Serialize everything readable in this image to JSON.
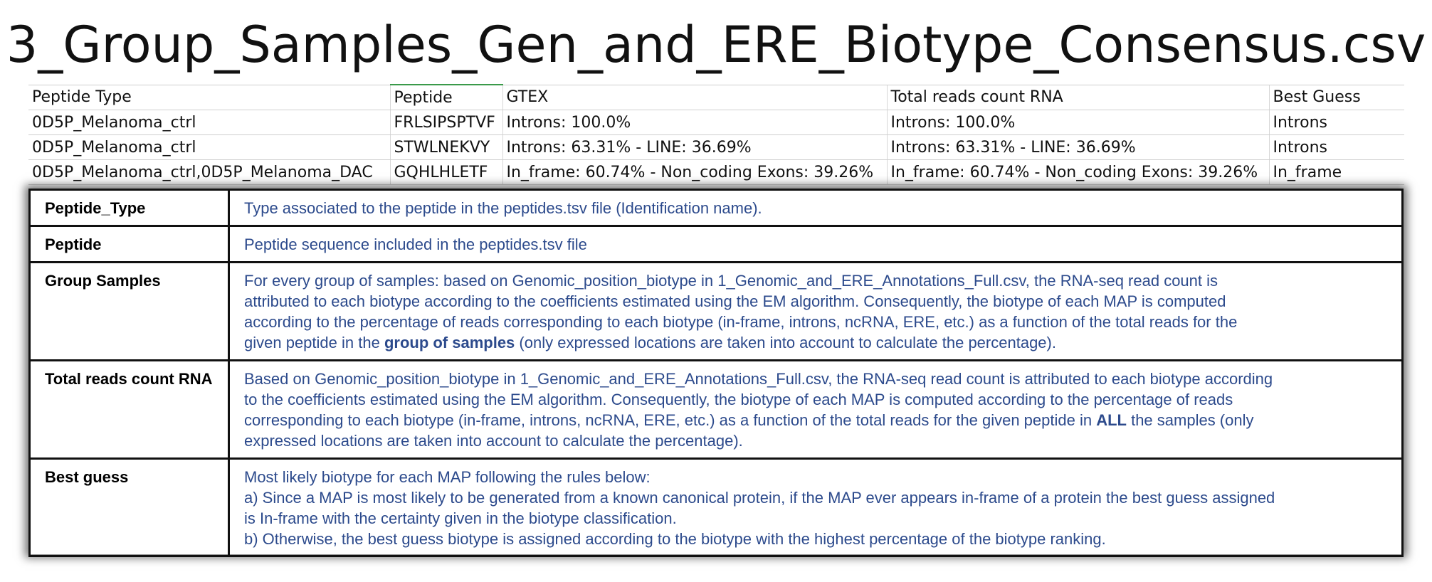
{
  "title": "3_Group_Samples_Gen_and_ERE_Biotype_Consensus.csv",
  "csv": {
    "headers": [
      "Peptide Type",
      "Peptide",
      "GTEX",
      "Total reads count RNA",
      "Best Guess"
    ],
    "rows": [
      [
        "0D5P_Melanoma_ctrl",
        "FRLSIPSPTVF",
        "Introns: 100.0%",
        "Introns: 100.0%",
        "Introns"
      ],
      [
        "0D5P_Melanoma_ctrl",
        "STWLNEKVY",
        "Introns: 63.31% - LINE: 36.69%",
        "Introns: 63.31% - LINE: 36.69%",
        "Introns"
      ],
      [
        "0D5P_Melanoma_ctrl,0D5P_Melanoma_DAC",
        "GQHLHLETF",
        "In_frame: 60.74% - Non_coding Exons: 39.26%",
        "In_frame: 60.74% - Non_coding Exons: 39.26%",
        "In_frame"
      ]
    ]
  },
  "descriptions": {
    "peptide_type": {
      "term": "Peptide_Type",
      "def": "Type associated to the peptide in the peptides.tsv file (Identification name)."
    },
    "peptide": {
      "term": "Peptide",
      "def": "Peptide sequence included in the peptides.tsv file"
    },
    "group_samples": {
      "term": "Group Samples",
      "def_l1": "For every group of samples: based on Genomic_position_biotype in 1_Genomic_and_ERE_Annotations_Full.csv, the RNA-seq read count is",
      "def_l2": "attributed to each biotype according to the coefficients estimated using the EM algorithm. Consequently, the biotype of each MAP is computed",
      "def_l3": "according to the percentage of reads corresponding to each biotype (in-frame, introns, ncRNA, ERE, etc.) as a function of the total reads for the",
      "def_l4_pre": "given peptide in the ",
      "def_l4_bold": "group of samples",
      "def_l4_post": " (only expressed locations are taken into account to calculate the percentage)."
    },
    "total_reads": {
      "term": "Total reads count RNA",
      "def_l1": "Based on Genomic_position_biotype in 1_Genomic_and_ERE_Annotations_Full.csv, the RNA-seq read count is attributed to each biotype according",
      "def_l2": "to the coefficients estimated using the EM algorithm. Consequently, the biotype of each MAP is computed according to the percentage of reads",
      "def_l3_pre": "corresponding to each biotype (in-frame, introns, ncRNA, ERE, etc.) as a function of the total reads for the given peptide in ",
      "def_l3_bold": "ALL",
      "def_l3_post": " the samples (only",
      "def_l4": "expressed locations are taken into account to calculate the percentage)."
    },
    "best_guess": {
      "term": "Best guess",
      "def_l1": "Most likely biotype for each MAP following the rules below:",
      "def_l2": "a) Since a MAP is most likely to be generated from a known canonical protein, if the MAP ever appears in-frame of a protein the best guess assigned",
      "def_l3": "is In-frame with the certainty given in the biotype classification.",
      "def_l4": "b) Otherwise, the best guess biotype is assigned according to the biotype with the highest percentage of the biotype ranking."
    }
  }
}
